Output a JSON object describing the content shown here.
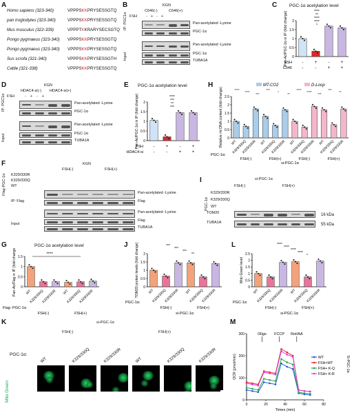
{
  "A": {
    "label": "A",
    "rows": [
      {
        "species": "Homo sapiens (323-340)",
        "pre": "VPPPS",
        "kk": "KK",
        "post": "PRYSESSGTQ"
      },
      {
        "species": "pan troglodytes (323-340)",
        "pre": "VPPPS",
        "kk": "KK",
        "post": "PRYSESSGTQ"
      },
      {
        "species": "Mus musculus (322-339)",
        "pre": "VPPPT",
        "kk": "K",
        "post": "KRARYSECSGTQ"
      },
      {
        "species": "Pongo pygmaeus (323-340)",
        "pre": "VPPPS",
        "kk": "KK",
        "post": "PRYSESSGTQ"
      },
      {
        "species": "Pongo pygmaeus (323-340)",
        "pre": "VPPPS",
        "kk": "KK",
        "post": "PRYSESSGTQ"
      },
      {
        "species": "Sus scrofa (321-340)",
        "pre": "VPPPS",
        "kk": "KK",
        "post": "PRYSESSGTH"
      },
      {
        "species": "Cattle (321-338)",
        "pre": "VPPPS",
        "kk": "KK",
        "post": "PRYSESSGTQ"
      }
    ]
  },
  "B": {
    "label": "B",
    "cell": "KGN",
    "g1": "C646(-)",
    "g2": "C646(+)",
    "fsh": "FSH",
    "ip": "IP: PGC1α",
    "input": "Input",
    "markers": [
      "Pan-acetylated -Lysine",
      "PGC-1α",
      "Pan-acetylated -Lysine",
      "PGC-1α",
      "TUBA1A"
    ]
  },
  "C": {
    "label": "C",
    "title": "PGC-1α acetylation level",
    "ylabel": "Pan-Ac/PGC-1α in IP (fold change)",
    "row1": "FSH",
    "row2": "C646",
    "sig": [
      "****",
      "**",
      "****",
      "****",
      "*"
    ]
  },
  "D": {
    "label": "D",
    "cell": "KGN",
    "g1": "HDAC4-si(-)",
    "g2": "HDAC4-si(+)",
    "fsh": "FSH",
    "ip": "IP: PGC1α",
    "input": "Input",
    "markers": [
      "Pan-acetylated -Lysine",
      "PGC-1α",
      "Pan-acetylated -Lysine",
      "PGC-1α",
      "TUBA1A"
    ]
  },
  "E": {
    "label": "E",
    "title": "PGC-1α acetylation level",
    "ylabel": "Pan-Ac/PGC-1α in IP (fold change)",
    "row1": "FSH",
    "row2": "HDAC4-si",
    "sig": [
      "****",
      "***",
      "**",
      "***"
    ]
  },
  "F": {
    "label": "F",
    "cell": "KGN",
    "g1": "FSH(-)",
    "g2": "FSH(+)",
    "side": "Flag-PGC-1α",
    "rows": [
      "K329/330R",
      "K329/330Q",
      "WT"
    ],
    "ip": "IP: Flag",
    "input": "Input",
    "markers": [
      "Pan-acetylated -Lysine",
      "Flag",
      "Pan-acetylated -Lysine",
      "Flag",
      "TUBA1A"
    ]
  },
  "G": {
    "label": "G",
    "title": "PGC-1α acetylation level",
    "ylabel": "Pan-Ac/Flag in IP (fold change)",
    "xrow": "Flag- PGC-1α",
    "groups": [
      "FSH(-)",
      "FSH(+)"
    ],
    "sig": "****"
  },
  "H": {
    "label": "H",
    "legend": [
      "MT-CO2",
      "D-Loop"
    ],
    "ylabel": "Relative mt DNA content (fold change)",
    "xrow": "PGC-1α:",
    "groups": [
      "FSH(-)",
      "FSH(+)",
      "FSH(-)",
      "FSH(+)"
    ],
    "si": "si-PGC-1α",
    "sig": [
      "****",
      "****",
      "***",
      "***",
      "*",
      "**",
      "****",
      "****",
      "***",
      "***",
      "**"
    ]
  },
  "I": {
    "label": "I",
    "si": "si-PGC-1α",
    "g1": "FSH(-)",
    "g2": "FSH(+)",
    "side": "PGC-1α",
    "rows": [
      "K329/330R",
      "K329/330Q",
      "WT"
    ],
    "markers": [
      "TOM20",
      "TUBA1A"
    ],
    "sizes": [
      "16 kDa",
      "55 kDa"
    ]
  },
  "J": {
    "label": "J",
    "ylabel": "TOM20 protein levels (fold change)",
    "xrow": "PGC-1α:",
    "groups": [
      "FSH(-)",
      "FSH(+)"
    ],
    "si": "si-PGC-1α",
    "sig": [
      "***",
      "***",
      "***",
      "**"
    ]
  },
  "K": {
    "label": "K",
    "si": "si-PGC-1α",
    "g1": "FSH(-)",
    "g2": "FSH(+)",
    "rowlabel": "PGC-1α:",
    "cols": [
      "WT",
      "K329/330Q",
      "K329/330R",
      "WT",
      "K329/330Q",
      "K329/330R"
    ],
    "stain": "Mito Green",
    "scale": "5 μm"
  },
  "L": {
    "label": "L",
    "ylabel": "Mito Green level",
    "xrow": "PGC-1α",
    "groups": [
      "FSH(-)",
      "FSH(+)"
    ],
    "si": "si-PGC-1α",
    "sig": [
      "****",
      "****",
      "****",
      "****",
      "*"
    ]
  },
  "M": {
    "label": "M",
    "ylabel": "OCR (pmol/min)",
    "xlabel": "Times (min)",
    "annot": [
      "Oligo",
      "FCCP",
      "Rot/AA"
    ],
    "side": "Si-PGC-1α",
    "legend": [
      "WT",
      "FSH+WT",
      "FSH+ K-Q",
      "FSH+ K-R"
    ]
  },
  "colors": {
    "wt": "#f3a37c",
    "q": "#e9759a",
    "r": "#c9b7e3",
    "blue": "#cfe4f7",
    "mtco2": "#a9cdea",
    "dloop": "#f4b7c9",
    "red": "#e3262a",
    "m_wt": "#2456d6",
    "m_fshwt": "#e3262a",
    "m_kq": "#2aa84a",
    "m_kr": "#d93ad6"
  },
  "chart_data": [
    {
      "type": "bar",
      "panel": "C",
      "categories": [
        "-/-",
        "+/-",
        "-/+",
        "+/+"
      ],
      "values": [
        1.0,
        0.3,
        1.7,
        1.6
      ],
      "ylim": [
        0,
        2.0
      ]
    },
    {
      "type": "bar",
      "panel": "E",
      "categories": [
        "-/-",
        "+/-",
        "-/+",
        "+/+"
      ],
      "values": [
        1.05,
        0.2,
        1.45,
        1.45
      ],
      "ylim": [
        0,
        2.0
      ]
    },
    {
      "type": "bar",
      "panel": "G",
      "categories": [
        "WT",
        "K329/330Q",
        "K329/330R",
        "WT",
        "K329/330Q",
        "K329/330R"
      ],
      "values": [
        1.0,
        0.25,
        0.25,
        0.22,
        0.25,
        0.28
      ],
      "ylim": [
        0,
        1.5
      ]
    },
    {
      "type": "bar",
      "panel": "H",
      "categories": [
        "WT",
        "K329/330Q",
        "K329/330R",
        "WT",
        "K329/330Q",
        "K329/330R"
      ],
      "series": [
        {
          "name": "MT-CO2",
          "values": [
            1.0,
            0.7,
            1.75,
            1.3,
            0.75,
            1.7
          ]
        },
        {
          "name": "D-Loop",
          "values": [
            1.0,
            0.65,
            1.9,
            1.7,
            0.8,
            1.75
          ]
        }
      ],
      "ylim": [
        0,
        2.5
      ]
    },
    {
      "type": "bar",
      "panel": "J",
      "categories": [
        "WT",
        "K329/330Q",
        "K329/330R",
        "WT",
        "K329/330Q",
        "K329/330R"
      ],
      "values": [
        1.0,
        0.65,
        1.45,
        1.45,
        0.6,
        1.4
      ],
      "ylim": [
        0,
        2.0
      ]
    },
    {
      "type": "bar",
      "panel": "L",
      "categories": [
        "WT",
        "K329/330Q",
        "K329/330R",
        "WT",
        "K329/330Q",
        "K329/330R"
      ],
      "values": [
        1.0,
        0.75,
        1.85,
        1.9,
        0.75,
        1.95
      ],
      "ylim": [
        0,
        2.5
      ]
    },
    {
      "type": "line",
      "panel": "M",
      "x": [
        0,
        6,
        12,
        18,
        24,
        30,
        36,
        42,
        48,
        54,
        60,
        66
      ],
      "series": [
        {
          "name": "WT",
          "values": [
            45,
            40,
            35,
            80,
            75,
            70,
            165,
            150,
            140,
            30,
            25,
            22
          ]
        },
        {
          "name": "FSH+WT",
          "values": [
            80,
            75,
            70,
            130,
            125,
            120,
            230,
            215,
            200,
            45,
            40,
            38
          ]
        },
        {
          "name": "FSH+ K-Q",
          "values": [
            55,
            50,
            45,
            95,
            90,
            85,
            185,
            170,
            160,
            35,
            30,
            28
          ]
        },
        {
          "name": "FSH+ K-R",
          "values": [
            75,
            70,
            65,
            125,
            120,
            115,
            220,
            205,
            195,
            45,
            40,
            38
          ]
        }
      ],
      "ylim": [
        0,
        300
      ],
      "xlim": [
        0,
        80
      ]
    }
  ]
}
